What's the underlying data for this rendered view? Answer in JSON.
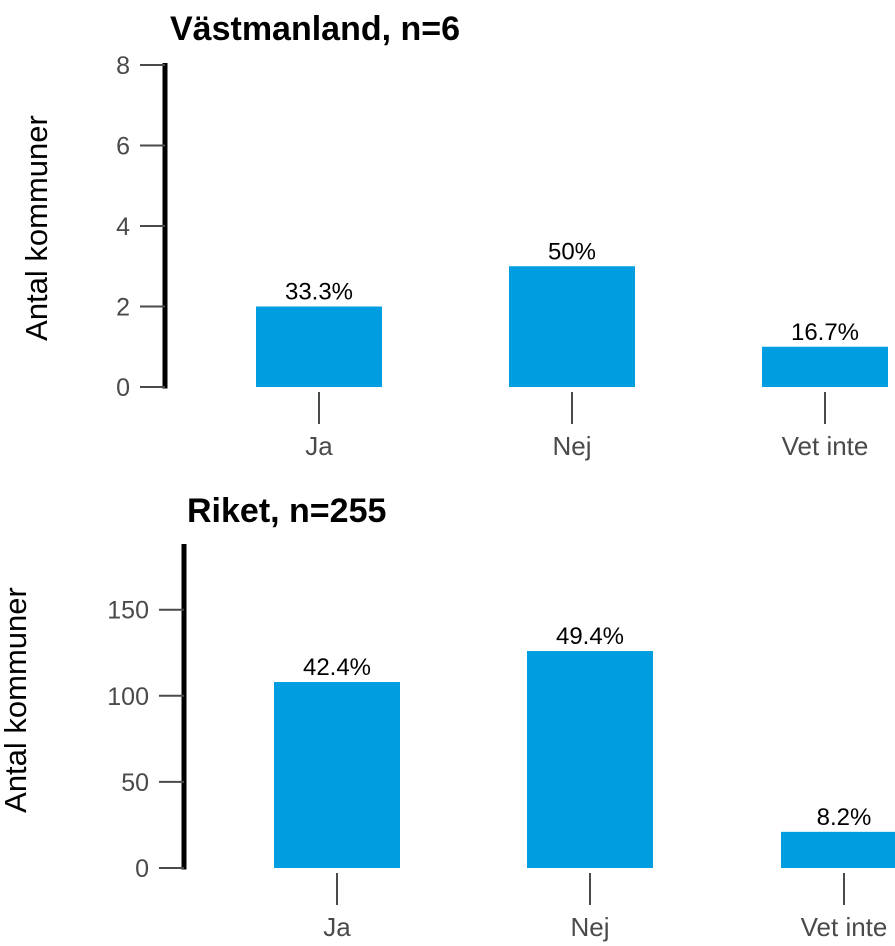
{
  "colors": {
    "bar": "#009de0",
    "axis": "#000000",
    "tick": "#4a4a4a",
    "text": "#000000"
  },
  "chart_data": [
    {
      "type": "bar",
      "title": "Västmanland, n=6",
      "ylabel": "Antal kommuner",
      "xlabel": "",
      "categories": [
        "Ja",
        "Nej",
        "Vet inte"
      ],
      "values": [
        2,
        3,
        1
      ],
      "data_labels": [
        "33.3%",
        "50%",
        "16.7%"
      ],
      "ylim": [
        0,
        8
      ],
      "yticks": [
        0,
        2,
        4,
        6,
        8
      ],
      "ytick_labels": [
        "0",
        "2",
        "4",
        "6",
        "8"
      ],
      "grid": false,
      "legend": "none"
    },
    {
      "type": "bar",
      "title": "Riket, n=255",
      "ylabel": "Antal kommuner",
      "xlabel": "",
      "categories": [
        "Ja",
        "Nej",
        "Vet inte"
      ],
      "values": [
        108,
        126,
        21
      ],
      "data_labels": [
        "42.4%",
        "49.4%",
        "8.2%"
      ],
      "ylim": [
        0,
        187
      ],
      "yticks": [
        0,
        50,
        100,
        150
      ],
      "ytick_labels": [
        "0",
        "50",
        "100",
        "150"
      ],
      "grid": false,
      "legend": "none"
    }
  ]
}
